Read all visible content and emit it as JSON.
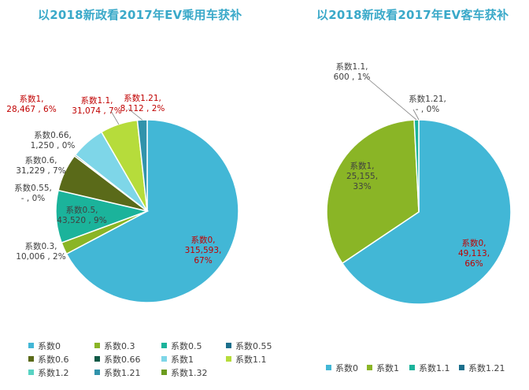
{
  "colors": {
    "title": "#3aa9c9",
    "red_label": "#c00000",
    "gray_label": "#404040"
  },
  "chart_data": [
    {
      "type": "pie",
      "title": "以2018新政看2017年EV乘用车获补",
      "legend_position": "bottom",
      "slices": [
        {
          "name": "系数0",
          "value": 315593,
          "value_label": "315,593",
          "percent_label": "67%",
          "color": "#42b7d6"
        },
        {
          "name": "系数0.3",
          "value": 10006,
          "value_label": "10,006",
          "percent_label": "2%",
          "color": "#8ab526"
        },
        {
          "name": "系数0.5",
          "value": 43520,
          "value_label": "43,520",
          "percent_label": "9%",
          "color": "#1bb39b"
        },
        {
          "name": "系数0.55",
          "value": 0,
          "value_label": "-",
          "percent_label": "0%",
          "color": "#1b6f8c"
        },
        {
          "name": "系数0.6",
          "value": 31229,
          "value_label": "31,229",
          "percent_label": "7%",
          "color": "#5a6a19"
        },
        {
          "name": "系数0.66",
          "value": 1250,
          "value_label": "1,250",
          "percent_label": "0%",
          "color": "#0f5946"
        },
        {
          "name": "系数1",
          "value": 28467,
          "value_label": "28,467",
          "percent_label": "6%",
          "color": "#7ed6e8"
        },
        {
          "name": "系数1.1",
          "value": 31074,
          "value_label": "31,074",
          "percent_label": "7%",
          "color": "#b6dc3b"
        },
        {
          "name": "系数1.2",
          "value": 0,
          "value_label": "",
          "percent_label": "",
          "color": "#58d3c3"
        },
        {
          "name": "系数1.21",
          "value": 8112,
          "value_label": "8,112",
          "percent_label": "2%",
          "color": "#3193ab"
        },
        {
          "name": "系数1.32",
          "value": 0,
          "value_label": "",
          "percent_label": "",
          "color": "#6c9c1f"
        }
      ]
    },
    {
      "type": "pie",
      "title": "以2018新政看2017年EV客车获补",
      "legend_position": "bottom",
      "slices": [
        {
          "name": "系数0",
          "value": 49113,
          "value_label": "49,113",
          "percent_label": "66%",
          "color": "#42b7d6"
        },
        {
          "name": "系数1",
          "value": 25155,
          "value_label": "25,155",
          "percent_label": "33%",
          "color": "#8ab526"
        },
        {
          "name": "系数1.1",
          "value": 600,
          "value_label": "600",
          "percent_label": "1%",
          "color": "#1bb39b"
        },
        {
          "name": "系数1.21",
          "value": 0,
          "value_label": "-",
          "percent_label": "0%",
          "color": "#1b6f8c"
        }
      ]
    }
  ]
}
